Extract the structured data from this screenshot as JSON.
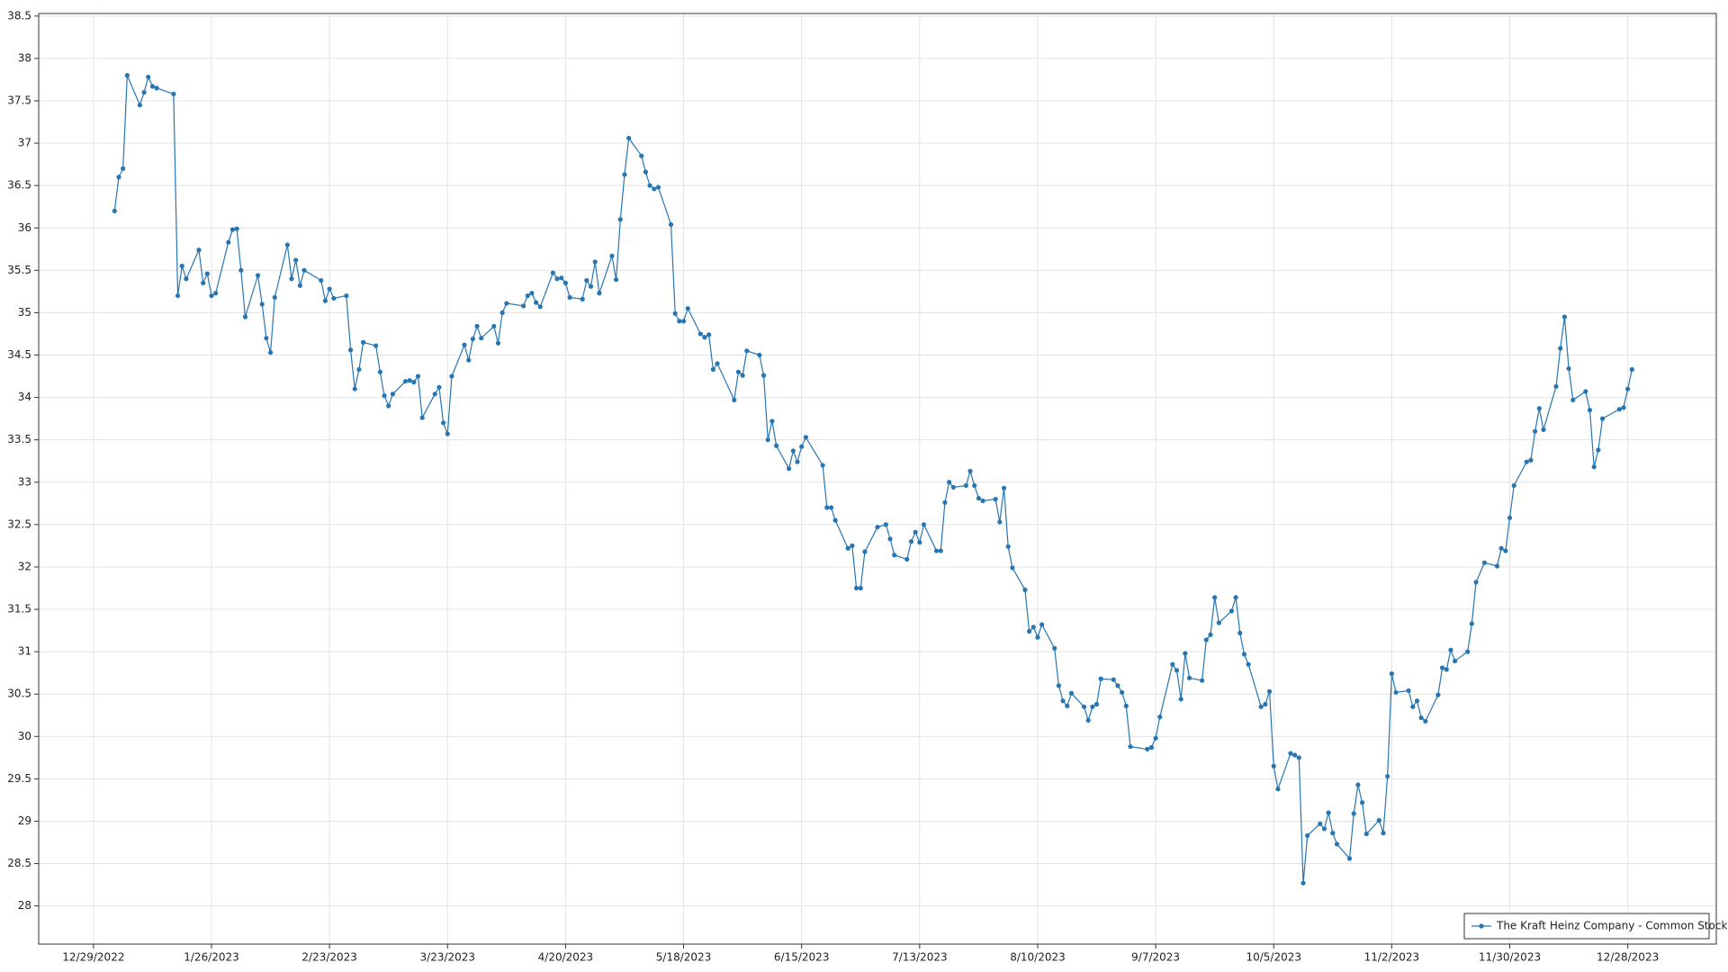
{
  "chart_data": {
    "type": "line",
    "x": [
      "1/3/2023",
      "1/4/2023",
      "1/5/2023",
      "1/6/2023",
      "1/9/2023",
      "1/10/2023",
      "1/11/2023",
      "1/12/2023",
      "1/13/2023",
      "1/17/2023",
      "1/18/2023",
      "1/19/2023",
      "1/20/2023",
      "1/23/2023",
      "1/24/2023",
      "1/25/2023",
      "1/26/2023",
      "1/27/2023",
      "1/30/2023",
      "1/31/2023",
      "2/1/2023",
      "2/2/2023",
      "2/3/2023",
      "2/6/2023",
      "2/7/2023",
      "2/8/2023",
      "2/9/2023",
      "2/10/2023",
      "2/13/2023",
      "2/14/2023",
      "2/15/2023",
      "2/16/2023",
      "2/17/2023",
      "2/21/2023",
      "2/22/2023",
      "2/23/2023",
      "2/24/2023",
      "2/27/2023",
      "2/28/2023",
      "3/1/2023",
      "3/2/2023",
      "3/3/2023",
      "3/6/2023",
      "3/7/2023",
      "3/8/2023",
      "3/9/2023",
      "3/10/2023",
      "3/13/2023",
      "3/14/2023",
      "3/15/2023",
      "3/16/2023",
      "3/17/2023",
      "3/20/2023",
      "3/21/2023",
      "3/22/2023",
      "3/23/2023",
      "3/24/2023",
      "3/27/2023",
      "3/28/2023",
      "3/29/2023",
      "3/30/2023",
      "3/31/2023",
      "4/3/2023",
      "4/4/2023",
      "4/5/2023",
      "4/6/2023",
      "4/10/2023",
      "4/11/2023",
      "4/12/2023",
      "4/13/2023",
      "4/14/2023",
      "4/17/2023",
      "4/18/2023",
      "4/19/2023",
      "4/20/2023",
      "4/21/2023",
      "4/24/2023",
      "4/25/2023",
      "4/26/2023",
      "4/27/2023",
      "4/28/2023",
      "5/1/2023",
      "5/2/2023",
      "5/3/2023",
      "5/4/2023",
      "5/5/2023",
      "5/8/2023",
      "5/9/2023",
      "5/10/2023",
      "5/11/2023",
      "5/12/2023",
      "5/15/2023",
      "5/16/2023",
      "5/17/2023",
      "5/18/2023",
      "5/19/2023",
      "5/22/2023",
      "5/23/2023",
      "5/24/2023",
      "5/25/2023",
      "5/26/2023",
      "5/30/2023",
      "5/31/2023",
      "6/1/2023",
      "6/2/2023",
      "6/5/2023",
      "6/6/2023",
      "6/7/2023",
      "6/8/2023",
      "6/9/2023",
      "6/12/2023",
      "6/13/2023",
      "6/14/2023",
      "6/15/2023",
      "6/16/2023",
      "6/20/2023",
      "6/21/2023",
      "6/22/2023",
      "6/23/2023",
      "6/26/2023",
      "6/27/2023",
      "6/28/2023",
      "6/29/2023",
      "6/30/2023",
      "7/3/2023",
      "7/5/2023",
      "7/6/2023",
      "7/7/2023",
      "7/10/2023",
      "7/11/2023",
      "7/12/2023",
      "7/13/2023",
      "7/14/2023",
      "7/17/2023",
      "7/18/2023",
      "7/19/2023",
      "7/20/2023",
      "7/21/2023",
      "7/24/2023",
      "7/25/2023",
      "7/26/2023",
      "7/27/2023",
      "7/28/2023",
      "7/31/2023",
      "8/1/2023",
      "8/2/2023",
      "8/3/2023",
      "8/4/2023",
      "8/7/2023",
      "8/8/2023",
      "8/9/2023",
      "8/10/2023",
      "8/11/2023",
      "8/14/2023",
      "8/15/2023",
      "8/16/2023",
      "8/17/2023",
      "8/18/2023",
      "8/21/2023",
      "8/22/2023",
      "8/23/2023",
      "8/24/2023",
      "8/25/2023",
      "8/28/2023",
      "8/29/2023",
      "8/30/2023",
      "8/31/2023",
      "9/1/2023",
      "9/5/2023",
      "9/6/2023",
      "9/7/2023",
      "9/8/2023",
      "9/11/2023",
      "9/12/2023",
      "9/13/2023",
      "9/14/2023",
      "9/15/2023",
      "9/18/2023",
      "9/19/2023",
      "9/20/2023",
      "9/21/2023",
      "9/22/2023",
      "9/25/2023",
      "9/26/2023",
      "9/27/2023",
      "9/28/2023",
      "9/29/2023",
      "10/2/2023",
      "10/3/2023",
      "10/4/2023",
      "10/5/2023",
      "10/6/2023",
      "10/9/2023",
      "10/10/2023",
      "10/11/2023",
      "10/12/2023",
      "10/13/2023",
      "10/16/2023",
      "10/17/2023",
      "10/18/2023",
      "10/19/2023",
      "10/20/2023",
      "10/23/2023",
      "10/24/2023",
      "10/25/2023",
      "10/26/2023",
      "10/27/2023",
      "10/30/2023",
      "10/31/2023",
      "11/1/2023",
      "11/2/2023",
      "11/3/2023",
      "11/6/2023",
      "11/7/2023",
      "11/8/2023",
      "11/9/2023",
      "11/10/2023",
      "11/13/2023",
      "11/14/2023",
      "11/15/2023",
      "11/16/2023",
      "11/17/2023",
      "11/20/2023",
      "11/21/2023",
      "11/22/2023",
      "11/24/2023",
      "11/27/2023",
      "11/28/2023",
      "11/29/2023",
      "11/30/2023",
      "12/1/2023",
      "12/4/2023",
      "12/5/2023",
      "12/6/2023",
      "12/7/2023",
      "12/8/2023",
      "12/11/2023",
      "12/12/2023",
      "12/13/2023",
      "12/14/2023",
      "12/15/2023",
      "12/18/2023",
      "12/19/2023",
      "12/20/2023",
      "12/21/2023",
      "12/22/2023",
      "12/26/2023",
      "12/27/2023",
      "12/28/2023",
      "12/29/2023"
    ],
    "series": [
      {
        "name": "The Kraft Heinz Company - Common Stock",
        "color": "#2776b2",
        "values": [
          36.2,
          36.6,
          36.7,
          37.8,
          37.45,
          37.6,
          37.78,
          37.67,
          37.65,
          37.58,
          35.2,
          35.55,
          35.4,
          35.74,
          35.35,
          35.46,
          35.2,
          35.23,
          35.83,
          35.98,
          35.99,
          35.5,
          34.95,
          35.44,
          35.1,
          34.7,
          34.53,
          35.18,
          35.8,
          35.4,
          35.62,
          35.32,
          35.5,
          35.38,
          35.14,
          35.28,
          35.17,
          35.2,
          34.56,
          34.1,
          34.33,
          34.65,
          34.61,
          34.3,
          34.02,
          33.9,
          34.04,
          34.19,
          34.2,
          34.18,
          34.25,
          33.76,
          34.04,
          34.12,
          33.7,
          33.57,
          34.25,
          34.62,
          34.44,
          34.69,
          34.84,
          34.7,
          34.84,
          34.64,
          35.0,
          35.11,
          35.08,
          35.2,
          35.23,
          35.12,
          35.07,
          35.47,
          35.4,
          35.41,
          35.35,
          35.18,
          35.16,
          35.38,
          35.31,
          35.6,
          35.23,
          35.67,
          35.39,
          36.1,
          36.63,
          37.06,
          36.85,
          36.66,
          36.5,
          36.46,
          36.48,
          36.04,
          34.99,
          34.9,
          34.9,
          35.05,
          34.75,
          34.71,
          34.74,
          34.33,
          34.4,
          33.97,
          34.3,
          34.26,
          34.55,
          34.5,
          34.26,
          33.5,
          33.72,
          33.43,
          33.16,
          33.37,
          33.24,
          33.42,
          33.53,
          33.2,
          32.7,
          32.7,
          32.55,
          32.22,
          32.25,
          31.75,
          31.75,
          32.18,
          32.47,
          32.5,
          32.33,
          32.14,
          32.09,
          32.3,
          32.41,
          32.29,
          32.5,
          32.19,
          32.19,
          32.76,
          33.0,
          32.94,
          32.96,
          33.13,
          32.96,
          32.81,
          32.78,
          32.8,
          32.53,
          32.93,
          32.24,
          31.99,
          31.73,
          31.24,
          31.29,
          31.17,
          31.32,
          31.04,
          30.6,
          30.42,
          30.36,
          30.51,
          30.35,
          30.19,
          30.35,
          30.38,
          30.68,
          30.67,
          30.6,
          30.52,
          30.36,
          29.88,
          29.85,
          29.87,
          29.98,
          30.23,
          30.85,
          30.78,
          30.44,
          30.98,
          30.69,
          30.66,
          31.14,
          31.2,
          31.64,
          31.34,
          31.48,
          31.64,
          31.22,
          30.97,
          30.85,
          30.35,
          30.38,
          30.53,
          29.65,
          29.38,
          29.8,
          29.78,
          29.75,
          28.27,
          28.83,
          28.97,
          28.91,
          29.1,
          28.86,
          28.73,
          28.56,
          29.09,
          29.43,
          29.22,
          28.85,
          29.01,
          28.86,
          29.53,
          30.74,
          30.52,
          30.54,
          30.35,
          30.42,
          30.22,
          30.18,
          30.49,
          30.81,
          30.79,
          31.02,
          30.89,
          31.0,
          31.33,
          31.82,
          32.05,
          32.01,
          32.22,
          32.19,
          32.58,
          32.96,
          33.24,
          33.26,
          33.6,
          33.87,
          33.62,
          34.13,
          34.58,
          34.95,
          34.34,
          33.97,
          34.07,
          33.85,
          33.18,
          33.38,
          33.75,
          33.86,
          33.88,
          34.1,
          34.33
        ]
      }
    ],
    "xlim": [
      "12/16/2022",
      "1/18/2024"
    ],
    "xticks": [
      "12/29/2022",
      "1/26/2023",
      "2/23/2023",
      "3/23/2023",
      "4/20/2023",
      "5/18/2023",
      "6/15/2023",
      "7/13/2023",
      "8/10/2023",
      "9/7/2023",
      "10/5/2023",
      "11/2/2023",
      "11/30/2023",
      "12/28/2023"
    ],
    "ylim": [
      27.55,
      38.53
    ],
    "yticks": [
      28,
      28.5,
      29,
      29.5,
      30,
      30.5,
      31,
      31.5,
      32,
      32.5,
      33,
      33.5,
      34,
      34.5,
      35,
      35.5,
      36,
      36.5,
      37,
      37.5,
      38,
      38.5
    ],
    "grid": true,
    "legend": "lower right"
  }
}
